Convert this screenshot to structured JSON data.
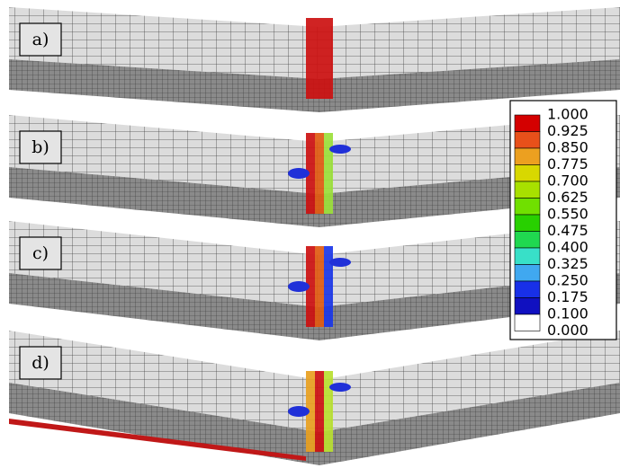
{
  "panels": [
    {
      "label": "a)"
    },
    {
      "label": "b)"
    },
    {
      "label": "c)"
    },
    {
      "label": "d)"
    }
  ],
  "legend": {
    "labels": [
      "1.000",
      "0.925",
      "0.850",
      "0.775",
      "0.700",
      "0.625",
      "0.550",
      "0.475",
      "0.400",
      "0.325",
      "0.250",
      "0.175",
      "0.100",
      "0.000"
    ]
  }
}
